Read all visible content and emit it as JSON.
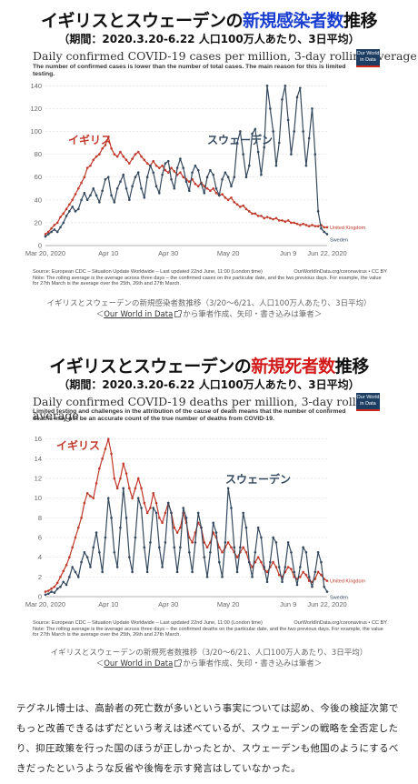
{
  "figures": [
    {
      "headline": {
        "prefix": "イギリスとスウェーデンの",
        "highlight": "新規感染者数",
        "suffix": "推移"
      },
      "subline": "（期間：2020.3.20-6.22 人口100万人あたり、3日平均）",
      "chart_title": "Daily confirmed COVID-19 cases per million, 3-day rolling average",
      "chart_subtitle": "The number of confirmed cases is lower than the number of total cases. The main reason for this is limited testing.",
      "logo": "Our World in Data",
      "footnote_source": "Source: European CDC – Situation Update Worldwide – Last updated 22nd June, 11:00 (London time)",
      "footnote_link": "OurWorldInData.org/coronavirus • CC BY",
      "footnote_note": "Note: The rolling average is the average across three days – the confirmed cases on the particular date, and the two previous days. For example, the value for 27th March is the average over the 25th, 26th and 27th March.",
      "caption_text": "イギリスとスウェーデンの新規感染者数推移（3/20〜6/21、人口100万人あたり、3日平均）",
      "caption_link": "Our World in Data",
      "caption_after": "から筆者作成、矢印・書き込みは筆者＞",
      "caption_before": "＜"
    },
    {
      "headline": {
        "prefix": "イギリスとスウェーデンの",
        "highlight": "新規死者数",
        "suffix": "推移"
      },
      "subline": "（期間：2020.3.20-6.22 人口100万人あたり、3日平均）",
      "chart_title": "Daily confirmed COVID-19 deaths per million, 3-day rolling average",
      "chart_subtitle": "Limited testing and challenges in the attribution of the cause of death means that the number of confirmed deaths may not be an accurate count of the true number of deaths from COVID-19.",
      "logo": "Our World in Data",
      "footnote_source": "Source: European CDC – Situation Update Worldwide – Last updated 22nd June, 11:00 (London time)",
      "footnote_link": "OurWorldInData.org/coronavirus • CC BY",
      "footnote_note": "Note: The rolling average is the average across three days – the confirmed deaths on the particular date, and the two previous days. For example, the value for 27th March is the average over the 25th, 26th and 27th March.",
      "caption_text": "イギリスとスウェーデンの新規死者数推移（3/20〜6/21、人口100万人あたり、3日平均）",
      "caption_link": "Our World in Data",
      "caption_after": "から筆者作成、矢印・書き込みは筆者＞",
      "caption_before": "＜"
    }
  ],
  "chart_data": [
    {
      "type": "line",
      "title": "Daily confirmed COVID-19 cases per million, 3-day rolling average",
      "x_range": [
        "2020-03-20",
        "2020-06-22"
      ],
      "x_ticks": [
        "Mar 20, 2020",
        "Apr 10",
        "Apr 30",
        "May 20",
        "Jun 9",
        "Jun 22, 2020"
      ],
      "x_tick_days": [
        0,
        21,
        41,
        61,
        81,
        94
      ],
      "y_ticks": [
        0,
        20,
        40,
        60,
        80,
        100,
        120,
        140
      ],
      "ylim": [
        0,
        145
      ],
      "grid": true,
      "series": [
        {
          "name": "United Kingdom",
          "annotation": "イギリス",
          "color": "#c0392b",
          "values": [
            10,
            12,
            15,
            18,
            20,
            25,
            28,
            32,
            36,
            40,
            45,
            50,
            55,
            60,
            68,
            70,
            75,
            78,
            80,
            85,
            88,
            95,
            85,
            80,
            78,
            82,
            78,
            75,
            72,
            76,
            80,
            82,
            78,
            75,
            72,
            70,
            74,
            70,
            68,
            70,
            66,
            64,
            68,
            65,
            62,
            64,
            60,
            58,
            56,
            58,
            54,
            52,
            55,
            52,
            50,
            48,
            50,
            46,
            44,
            45,
            42,
            40,
            42,
            38,
            36,
            34,
            35,
            32,
            30,
            28,
            28,
            26,
            26,
            24,
            25,
            24,
            23,
            24,
            22,
            22,
            21,
            22,
            20,
            20,
            19,
            18,
            19,
            18,
            17,
            18,
            17,
            17,
            18,
            16,
            16
          ]
        },
        {
          "name": "Sweden",
          "annotation": "スウェーデン",
          "color": "#34495e",
          "values": [
            8,
            10,
            12,
            14,
            12,
            16,
            20,
            26,
            30,
            34,
            30,
            32,
            40,
            46,
            40,
            44,
            50,
            44,
            38,
            48,
            58,
            60,
            44,
            38,
            50,
            56,
            62,
            50,
            40,
            52,
            60,
            64,
            50,
            42,
            60,
            70,
            64,
            52,
            46,
            62,
            72,
            74,
            58,
            50,
            68,
            76,
            68,
            56,
            48,
            64,
            70,
            66,
            54,
            46,
            60,
            66,
            62,
            50,
            44,
            58,
            64,
            60,
            52,
            60,
            90,
            100,
            80,
            60,
            70,
            98,
            102,
            82,
            62,
            86,
            140,
            120,
            100,
            70,
            90,
            128,
            140,
            110,
            80,
            100,
            130,
            138,
            100,
            70,
            94,
            120,
            80,
            30,
            15,
            12,
            10
          ]
        }
      ]
    },
    {
      "type": "line",
      "title": "Daily confirmed COVID-19 deaths per million, 3-day rolling average",
      "x_range": [
        "2020-03-20",
        "2020-06-22"
      ],
      "x_ticks": [
        "Mar 20, 2020",
        "Apr 10",
        "Apr 30",
        "May 20",
        "Jun 9",
        "Jun 22, 2020"
      ],
      "x_tick_days": [
        0,
        21,
        41,
        61,
        81,
        94
      ],
      "y_ticks": [
        0,
        2,
        4,
        6,
        8,
        10,
        12,
        14,
        16
      ],
      "ylim": [
        0,
        16.8
      ],
      "grid": true,
      "series": [
        {
          "name": "United Kingdom",
          "annotation": "イギリス",
          "color": "#c0392b",
          "values": [
            0.5,
            0.6,
            0.8,
            1.0,
            1.4,
            2.0,
            2.6,
            3.2,
            4.0,
            5.0,
            6.0,
            7.0,
            8.0,
            9.5,
            10.5,
            10.2,
            10.0,
            11.5,
            13.0,
            14.0,
            15.0,
            16.0,
            14.5,
            12.0,
            11.0,
            12.0,
            13.5,
            12.5,
            11.0,
            10.0,
            11.0,
            12.0,
            11.0,
            9.5,
            8.5,
            9.0,
            10.5,
            9.5,
            8.0,
            7.5,
            8.5,
            9.5,
            8.5,
            7.0,
            6.5,
            7.0,
            8.5,
            7.5,
            6.0,
            5.5,
            6.5,
            7.5,
            7.0,
            5.5,
            5.0,
            5.5,
            6.5,
            6.0,
            5.0,
            4.5,
            5.0,
            5.5,
            5.0,
            4.5,
            4.0,
            4.5,
            5.0,
            4.5,
            3.5,
            3.0,
            3.5,
            4.0,
            3.5,
            2.8,
            2.5,
            3.0,
            3.5,
            3.0,
            2.2,
            2.0,
            2.5,
            3.0,
            2.8,
            2.0,
            1.8,
            2.0,
            2.5,
            2.2,
            1.6,
            1.5,
            1.8,
            2.5,
            2.2,
            1.8,
            1.6
          ]
        },
        {
          "name": "Sweden",
          "annotation": "スウェーデン",
          "color": "#34495e",
          "values": [
            0.2,
            0.3,
            0.5,
            0.4,
            0.8,
            1.0,
            1.5,
            1.2,
            2.0,
            3.0,
            2.5,
            2.0,
            3.5,
            4.5,
            4.0,
            3.0,
            5.0,
            6.5,
            4.5,
            2.5,
            6.0,
            10.0,
            8.0,
            4.5,
            3.0,
            7.0,
            11.0,
            8.0,
            4.0,
            2.5,
            6.0,
            10.0,
            9.0,
            5.0,
            2.5,
            5.5,
            9.0,
            8.5,
            5.0,
            3.0,
            5.5,
            9.5,
            8.5,
            5.0,
            2.5,
            5.0,
            9.0,
            8.0,
            4.5,
            2.5,
            5.5,
            8.5,
            7.0,
            4.0,
            2.0,
            4.5,
            7.5,
            6.5,
            3.5,
            2.0,
            5.5,
            11.0,
            9.0,
            5.0,
            2.5,
            5.0,
            8.5,
            7.0,
            3.5,
            2.0,
            4.5,
            7.0,
            6.0,
            3.0,
            1.5,
            3.5,
            6.0,
            5.5,
            3.0,
            1.5,
            3.0,
            5.5,
            4.5,
            2.5,
            1.2,
            3.0,
            5.0,
            4.5,
            2.0,
            1.0,
            2.5,
            4.5,
            3.5,
            1.0,
            0.5
          ]
        }
      ]
    }
  ],
  "article": {
    "paragraph": "テグネル博士は、高齢者の死亡数が多いという事実については認め、今後の検証次第でもっと改善できるはずだという考えは述べているが、スウェーデンの戦略を全否定したり、抑圧政策を行った国のほうが正しかったとか、スウェーデンも他国のようにするべきだったというような反省や後悔を示す発言はしていなかった。"
  }
}
